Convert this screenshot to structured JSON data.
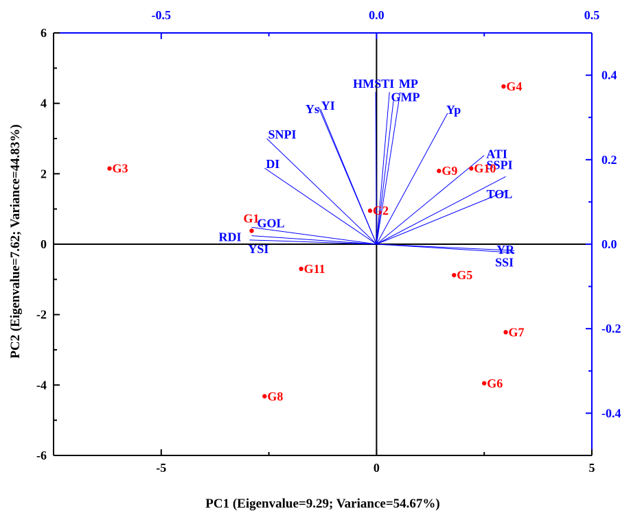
{
  "chart_data": {
    "type": "scatter",
    "title": "",
    "xlabel": "PC1 (Eigenvalue=9.29; Variance=54.67%)",
    "ylabel": "PC2 (Eigenvalue=7.62; Variance=44.83%)",
    "xlim": [
      -7.5,
      5
    ],
    "ylim": [
      -6,
      6
    ],
    "xticks": [
      -5,
      0,
      5
    ],
    "yticks": [
      -6,
      -4,
      -2,
      0,
      2,
      4,
      6
    ],
    "xticks_top": [
      "-0.5",
      "0.0",
      "0.5"
    ],
    "yticks_right": [
      "0.4",
      "0.2",
      "0.0",
      "-0.2",
      "-0.4"
    ],
    "secondary_xlim": [
      -0.75,
      0.5
    ],
    "secondary_ylim": [
      -0.5,
      0.5
    ],
    "secondary_axis_color": "#0000ff",
    "genotype_color": "#ff0000",
    "vector_color": "#0000ff",
    "reference_lines": "x=0, y=0",
    "grid": false,
    "legend": "none",
    "genotypes": [
      {
        "label": "G1",
        "x": -2.9,
        "y": 0.38
      },
      {
        "label": "G2",
        "x": -0.15,
        "y": 0.95
      },
      {
        "label": "G3",
        "x": -6.2,
        "y": 2.15
      },
      {
        "label": "G4",
        "x": 2.95,
        "y": 4.48
      },
      {
        "label": "G5",
        "x": 1.8,
        "y": -0.88
      },
      {
        "label": "G6",
        "x": 2.5,
        "y": -3.95
      },
      {
        "label": "G7",
        "x": 3.0,
        "y": -2.5
      },
      {
        "label": "G8",
        "x": -2.6,
        "y": -4.32
      },
      {
        "label": "G9",
        "x": 1.45,
        "y": 2.08
      },
      {
        "label": "G10",
        "x": 2.2,
        "y": 2.15
      },
      {
        "label": "G11",
        "x": -1.75,
        "y": -0.7
      }
    ],
    "vectors": [
      {
        "label": "HM",
        "x": -0.002,
        "y": 0.36
      },
      {
        "label": "STI",
        "x": 0.03,
        "y": 0.36
      },
      {
        "label": "MP",
        "x": 0.055,
        "y": 0.36
      },
      {
        "label": "GMP",
        "x": 0.04,
        "y": 0.345
      },
      {
        "label": "Ys",
        "x": -0.13,
        "y": 0.32
      },
      {
        "label": "YI",
        "x": -0.135,
        "y": 0.325
      },
      {
        "label": "Yp",
        "x": 0.165,
        "y": 0.31
      },
      {
        "label": "SNPI",
        "x": -0.255,
        "y": 0.25
      },
      {
        "label": "DI",
        "x": -0.26,
        "y": 0.18
      },
      {
        "label": "ATI",
        "x": 0.25,
        "y": 0.21
      },
      {
        "label": "SSPI",
        "x": 0.3,
        "y": 0.16
      },
      {
        "label": "TOL",
        "x": 0.3,
        "y": 0.125
      },
      {
        "label": "GOL",
        "x": -0.29,
        "y": 0.04
      },
      {
        "label": "RDI",
        "x": -0.29,
        "y": 0.02
      },
      {
        "label": "YSI",
        "x": -0.295,
        "y": 0.01
      },
      {
        "label": "YR",
        "x": 0.32,
        "y": -0.015
      },
      {
        "label": "SSI",
        "x": 0.32,
        "y": -0.02
      }
    ]
  }
}
